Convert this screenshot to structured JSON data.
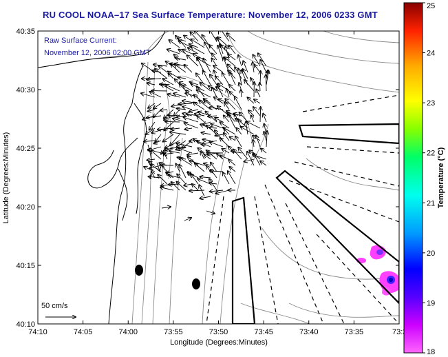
{
  "title": "RU COOL  NOAA–17  Sea Surface Temperature:  November 12, 2006 0233 GMT",
  "annotation": {
    "line1": "Raw Surface Current:",
    "line2": "November 12, 2006 02:00 GMT"
  },
  "scale_label": "50 cm/s",
  "axes": {
    "xlabel": "Longitude (Degrees:Minutes)",
    "ylabel": "Latitude (Degrees:Minutes)",
    "xticks": [
      "74:10",
      "74:05",
      "74:00",
      "73:55",
      "73:50",
      "73:45",
      "73:40",
      "73:35",
      "73:3"
    ],
    "yticks": [
      "40:35",
      "40:30",
      "40:25",
      "40:20",
      "40:15",
      "40:10"
    ]
  },
  "colorbar": {
    "label": "Temperature (°C)",
    "ticks": [
      "25",
      "24",
      "23",
      "22",
      "21",
      "20",
      "19",
      "18"
    ],
    "min": 18,
    "max": 25
  },
  "colors": {
    "title": "#1a1aa0",
    "coast": "#000000",
    "contours": "#8a8a8a",
    "warm_patch": "#ff40ff"
  }
}
